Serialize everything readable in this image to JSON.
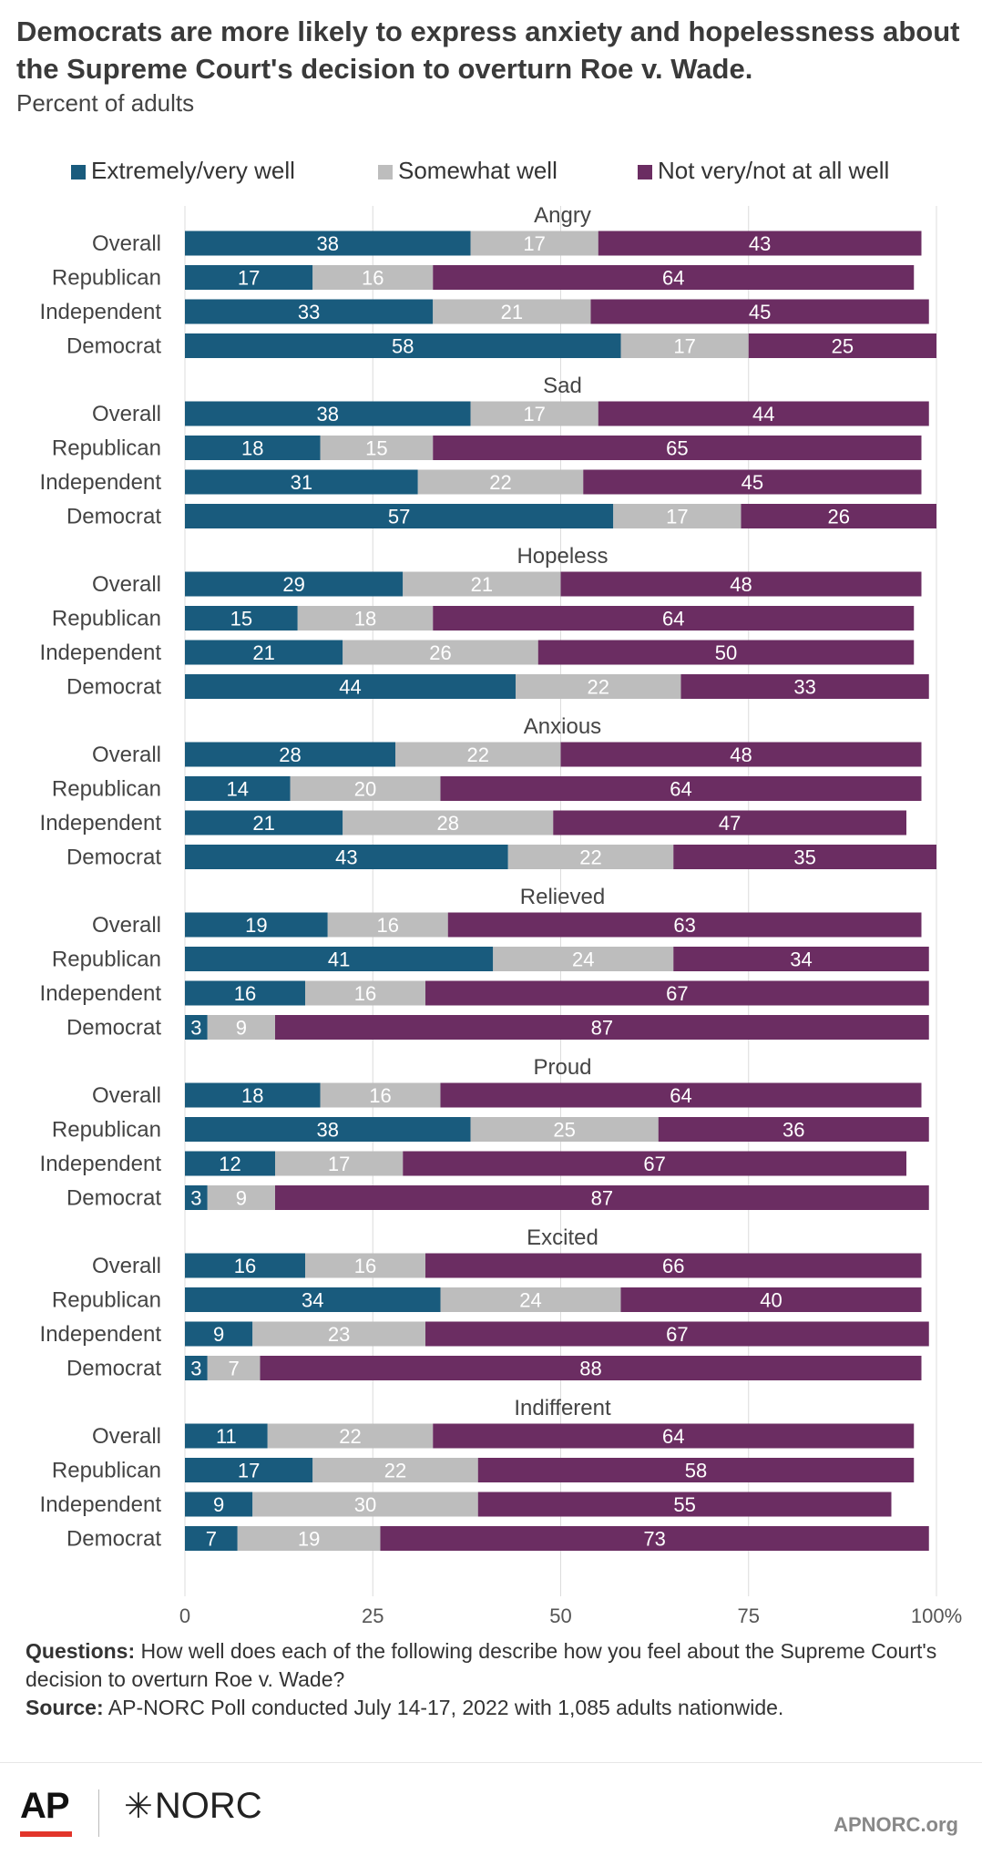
{
  "header": {
    "title": "Democrats are more likely to express anxiety and hopelessness about the Supreme Court's decision to overturn Roe v. Wade.",
    "subtitle": "Percent of adults"
  },
  "colors": {
    "extremely": "#195b7d",
    "somewhat": "#bdbdbd",
    "not_very": "#6b2d62"
  },
  "chart_data": {
    "type": "bar",
    "orientation": "horizontal",
    "stacked": true,
    "xlim": [
      0,
      100
    ],
    "x_ticks": [
      "0",
      "25",
      "50",
      "75",
      "100%"
    ],
    "grid": true,
    "legend_position": "top",
    "series_names": [
      "Extremely/very well",
      "Somewhat well",
      "Not very/not at all well"
    ],
    "groups": [
      {
        "label": "Angry",
        "rows": [
          {
            "label": "Overall",
            "values": [
              38,
              17,
              43
            ]
          },
          {
            "label": "Republican",
            "values": [
              17,
              16,
              64
            ]
          },
          {
            "label": "Independent",
            "values": [
              33,
              21,
              45
            ]
          },
          {
            "label": "Democrat",
            "values": [
              58,
              17,
              25
            ]
          }
        ]
      },
      {
        "label": "Sad",
        "rows": [
          {
            "label": "Overall",
            "values": [
              38,
              17,
              44
            ]
          },
          {
            "label": "Republican",
            "values": [
              18,
              15,
              65
            ]
          },
          {
            "label": "Independent",
            "values": [
              31,
              22,
              45
            ]
          },
          {
            "label": "Democrat",
            "values": [
              57,
              17,
              26
            ]
          }
        ]
      },
      {
        "label": "Hopeless",
        "rows": [
          {
            "label": "Overall",
            "values": [
              29,
              21,
              48
            ]
          },
          {
            "label": "Republican",
            "values": [
              15,
              18,
              64
            ]
          },
          {
            "label": "Independent",
            "values": [
              21,
              26,
              50
            ]
          },
          {
            "label": "Democrat",
            "values": [
              44,
              22,
              33
            ]
          }
        ]
      },
      {
        "label": "Anxious",
        "rows": [
          {
            "label": "Overall",
            "values": [
              28,
              22,
              48
            ]
          },
          {
            "label": "Republican",
            "values": [
              14,
              20,
              64
            ]
          },
          {
            "label": "Independent",
            "values": [
              21,
              28,
              47
            ]
          },
          {
            "label": "Democrat",
            "values": [
              43,
              22,
              35
            ]
          }
        ]
      },
      {
        "label": "Relieved",
        "rows": [
          {
            "label": "Overall",
            "values": [
              19,
              16,
              63
            ]
          },
          {
            "label": "Republican",
            "values": [
              41,
              24,
              34
            ]
          },
          {
            "label": "Independent",
            "values": [
              16,
              16,
              67
            ]
          },
          {
            "label": "Democrat",
            "values": [
              3,
              9,
              87
            ]
          }
        ]
      },
      {
        "label": "Proud",
        "rows": [
          {
            "label": "Overall",
            "values": [
              18,
              16,
              64
            ]
          },
          {
            "label": "Republican",
            "values": [
              38,
              25,
              36
            ]
          },
          {
            "label": "Independent",
            "values": [
              12,
              17,
              67
            ]
          },
          {
            "label": "Democrat",
            "values": [
              3,
              9,
              87
            ]
          }
        ]
      },
      {
        "label": "Excited",
        "rows": [
          {
            "label": "Overall",
            "values": [
              16,
              16,
              66
            ]
          },
          {
            "label": "Republican",
            "values": [
              34,
              24,
              40
            ]
          },
          {
            "label": "Independent",
            "values": [
              9,
              23,
              67
            ]
          },
          {
            "label": "Democrat",
            "values": [
              3,
              7,
              88
            ]
          }
        ]
      },
      {
        "label": "Indifferent",
        "rows": [
          {
            "label": "Overall",
            "values": [
              11,
              22,
              64
            ]
          },
          {
            "label": "Republican",
            "values": [
              17,
              22,
              58
            ]
          },
          {
            "label": "Independent",
            "values": [
              9,
              30,
              55
            ]
          },
          {
            "label": "Democrat",
            "values": [
              7,
              19,
              73
            ]
          }
        ]
      }
    ]
  },
  "notes": {
    "questions_label": "Questions:",
    "questions_text": " How well does each of the following describe how you feel about the Supreme Court's decision to overturn Roe v. Wade?",
    "source_label": "Source:",
    "source_text": " AP-NORC Poll conducted July 14-17, 2022 with 1,085 adults nationwide."
  },
  "footer": {
    "logo_ap": "AP",
    "logo_norc_star": "✳",
    "logo_norc": "NORC",
    "site": "APNORC.org"
  }
}
